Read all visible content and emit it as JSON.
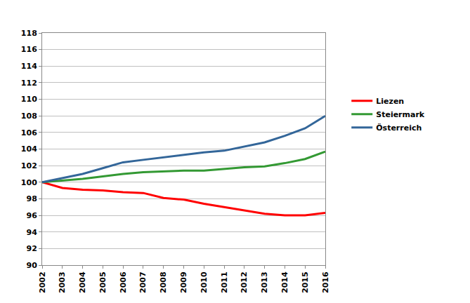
{
  "chart_data": {
    "type": "line",
    "x": [
      2002,
      2003,
      2004,
      2005,
      2006,
      2007,
      2008,
      2009,
      2010,
      2011,
      2012,
      2013,
      2014,
      2015,
      2016
    ],
    "series": [
      {
        "name": "Liezen",
        "color": "#ff0000",
        "values": [
          100,
          99.3,
          99.1,
          99.0,
          98.8,
          98.7,
          98.1,
          97.9,
          97.4,
          97.0,
          96.6,
          96.2,
          96.0,
          96.0,
          96.3
        ]
      },
      {
        "name": "Steiermark",
        "color": "#339933",
        "values": [
          100,
          100.2,
          100.4,
          100.7,
          101.0,
          101.2,
          101.3,
          101.4,
          101.4,
          101.6,
          101.8,
          101.9,
          102.3,
          102.8,
          103.7
        ]
      },
      {
        "name": "Österreich",
        "color": "#336699",
        "values": [
          100,
          100.5,
          101.0,
          101.7,
          102.4,
          102.7,
          103.0,
          103.3,
          103.6,
          103.8,
          104.3,
          104.8,
          105.6,
          106.5,
          108.0
        ]
      }
    ],
    "xlim": [
      2002,
      2016
    ],
    "xticks": [
      2002,
      2003,
      2004,
      2005,
      2006,
      2007,
      2008,
      2009,
      2010,
      2011,
      2012,
      2013,
      2014,
      2015,
      2016
    ],
    "ylim": [
      90,
      118
    ],
    "yticks": [
      90,
      92,
      94,
      96,
      98,
      100,
      102,
      104,
      106,
      108,
      110,
      112,
      114,
      116,
      118
    ],
    "grid": true,
    "legend": "right"
  }
}
